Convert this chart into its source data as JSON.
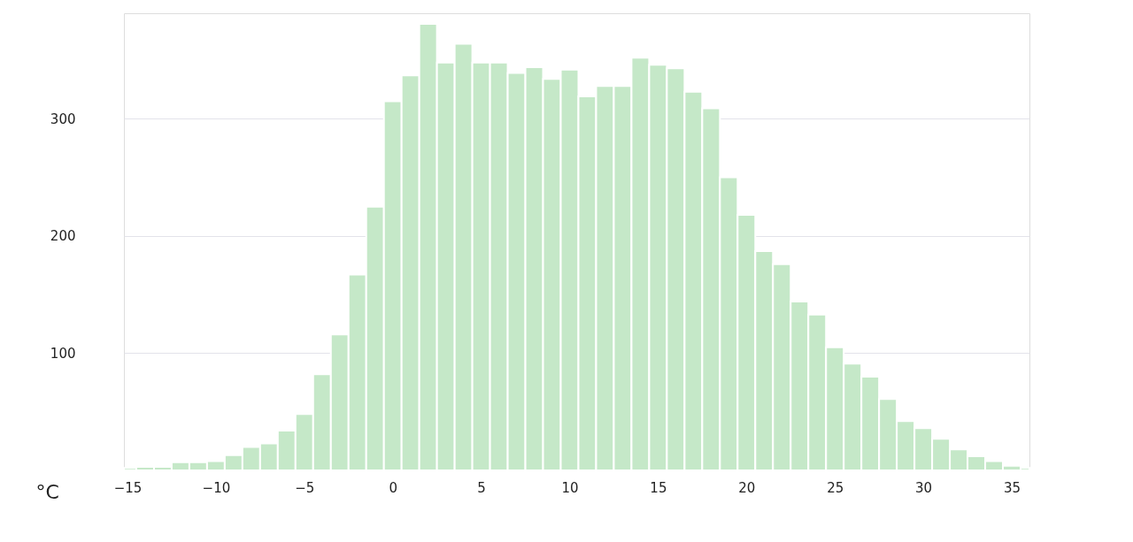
{
  "chart_data": {
    "type": "histogram",
    "xlabel": "°C",
    "color": "#c5e8c8",
    "bins": [
      -15.2,
      -14.5,
      -13.5,
      -12.5,
      -11.5,
      -10.5,
      -9.5,
      -8.5,
      -7.5,
      -6.5,
      -5.5,
      -4.5,
      -3.5,
      -2.5,
      -1.5,
      -0.5,
      0.5,
      1.5,
      2.5,
      3.5,
      4.5,
      5.5,
      6.5,
      7.5,
      8.5,
      9.5,
      10.5,
      11.5,
      12.5,
      13.5,
      14.5,
      15.5,
      16.5,
      17.5,
      18.5,
      19.5,
      20.5,
      21.5,
      22.5,
      23.5,
      24.5,
      25.5,
      26.5,
      27.5,
      28.5,
      29.5,
      30.5,
      31.5,
      32.5,
      33.5,
      34.5,
      35.5,
      36
    ],
    "values": [
      2,
      3,
      3,
      7,
      7,
      8,
      13,
      20,
      23,
      34,
      48,
      82,
      116,
      167,
      225,
      315,
      337,
      381,
      348,
      364,
      348,
      348,
      339,
      344,
      334,
      342,
      319,
      328,
      328,
      352,
      346,
      343,
      323,
      309,
      250,
      218,
      187,
      176,
      144,
      133,
      105,
      91,
      80,
      61,
      42,
      36,
      27,
      18,
      12,
      8,
      4,
      2
    ],
    "xlim": [
      -15.2,
      36
    ],
    "xticks": [
      -15,
      -10,
      -5,
      0,
      5,
      10,
      15,
      20,
      25,
      30,
      35
    ],
    "ylim": [
      0,
      390
    ],
    "yticks": [
      100,
      200,
      300
    ],
    "grid": "y"
  }
}
